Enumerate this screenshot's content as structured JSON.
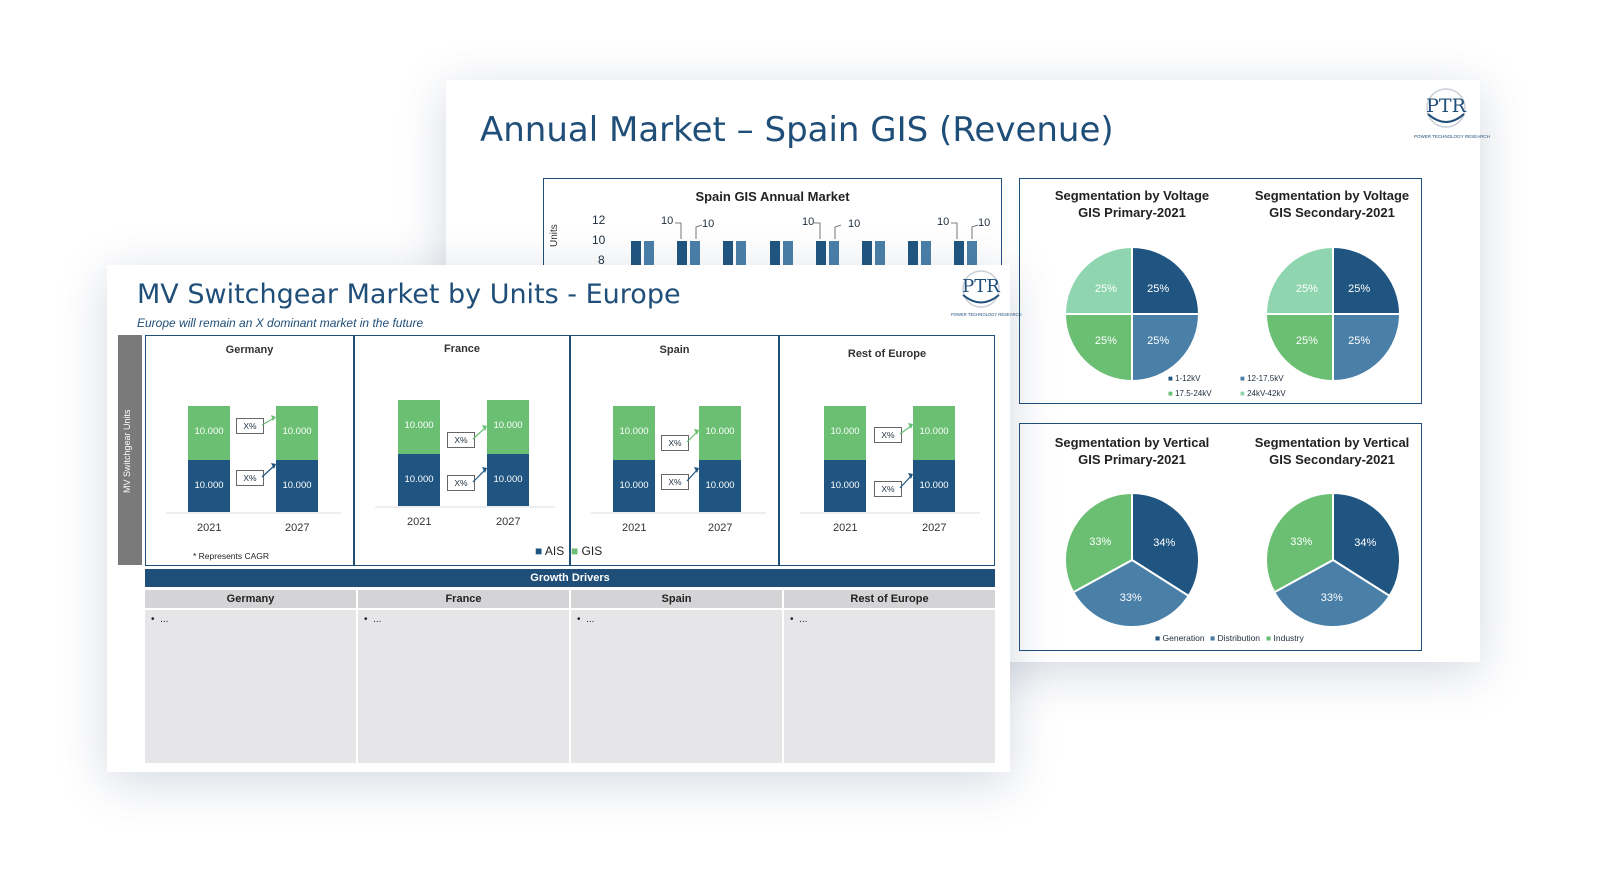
{
  "colors": {
    "navy": "#1f4e79",
    "dark_blue": "#1f5580",
    "mid_blue": "#4a7fa8",
    "green": "#6abf73",
    "light_green": "#8fd6b0",
    "gray_bar": "#7a7a7a"
  },
  "back_slide": {
    "title": "Annual Market – Spain GIS (Revenue)",
    "logo": {
      "text": "PTR",
      "subtext": "POWER TECHNOLOGY RESEARCH"
    },
    "chart": {
      "title": "Spain GIS Annual Market",
      "ylabel": "Units",
      "yticks": [
        "12",
        "10",
        "8"
      ],
      "data_labels": [
        "10",
        "10",
        "10",
        "10",
        "10",
        "10"
      ]
    },
    "voltage_box": {
      "primary_title_1": "Segmentation by Voltage",
      "primary_title_2": "GIS Primary-2021",
      "secondary_title_1": "Segmentation by Voltage",
      "secondary_title_2": "GIS Secondary-2021",
      "legend": [
        "1-12kV",
        "12-17.5kV",
        "17.5-24kV",
        "24kV-42kV"
      ]
    },
    "vertical_box": {
      "primary_title_1": "Segmentation by Vertical",
      "primary_title_2": "GIS Primary-2021",
      "secondary_title_1": "Segmentation by Vertical",
      "secondary_title_2": "GIS Secondary-2021",
      "legend": [
        "Generation",
        "Distribution",
        "Industry"
      ]
    }
  },
  "front_slide": {
    "title": "MV Switchgear Market by Units - Europe",
    "subtitle": "Europe will remain an X dominant market in the future",
    "logo": {
      "text": "PTR",
      "subtext": "POWER TECHNOLOGY RESEARCH"
    },
    "side_label": "MV Switchgear Units",
    "cagr_note": "* Represents CAGR",
    "legend": {
      "ais": "AIS",
      "gis": "GIS"
    },
    "cagr_box": "X%",
    "panels": [
      {
        "name": "Germany",
        "y1": "2021",
        "y2": "2027",
        "vals": [
          "10.000",
          "10.000",
          "10.000",
          "10.000"
        ]
      },
      {
        "name": "France",
        "y1": "2021",
        "y2": "2027",
        "vals": [
          "10.000",
          "10.000",
          "10.000",
          "10.000"
        ]
      },
      {
        "name": "Spain",
        "y1": "2021",
        "y2": "2027",
        "vals": [
          "10.000",
          "10.000",
          "10.000",
          "10.000"
        ]
      },
      {
        "name": "Rest of Europe",
        "y1": "2021",
        "y2": "2027",
        "vals": [
          "10.000",
          "10.000",
          "10.000",
          "10.000"
        ]
      }
    ],
    "growth_drivers": {
      "title": "Growth Drivers",
      "columns": [
        {
          "name": "Germany",
          "bullet": "..."
        },
        {
          "name": "France",
          "bullet": "..."
        },
        {
          "name": "Spain",
          "bullet": "..."
        },
        {
          "name": "Rest of Europe",
          "bullet": "..."
        }
      ]
    }
  },
  "chart_data": [
    {
      "type": "pie",
      "title": "Segmentation by Voltage GIS Primary-2021",
      "categories": [
        "1-12kV",
        "12-17.5kV",
        "17.5-24kV",
        "24kV-42kV"
      ],
      "values": [
        25,
        25,
        25,
        25
      ]
    },
    {
      "type": "pie",
      "title": "Segmentation by Voltage GIS Secondary-2021",
      "categories": [
        "1-12kV",
        "12-17.5kV",
        "17.5-24kV",
        "24kV-42kV"
      ],
      "values": [
        25,
        25,
        25,
        25
      ]
    },
    {
      "type": "pie",
      "title": "Segmentation by Vertical GIS Primary-2021",
      "categories": [
        "Generation",
        "Distribution",
        "Industry"
      ],
      "values": [
        34,
        33,
        33
      ]
    },
    {
      "type": "pie",
      "title": "Segmentation by Vertical GIS Secondary-2021",
      "categories": [
        "Generation",
        "Distribution",
        "Industry"
      ],
      "values": [
        34,
        33,
        33
      ]
    }
  ]
}
